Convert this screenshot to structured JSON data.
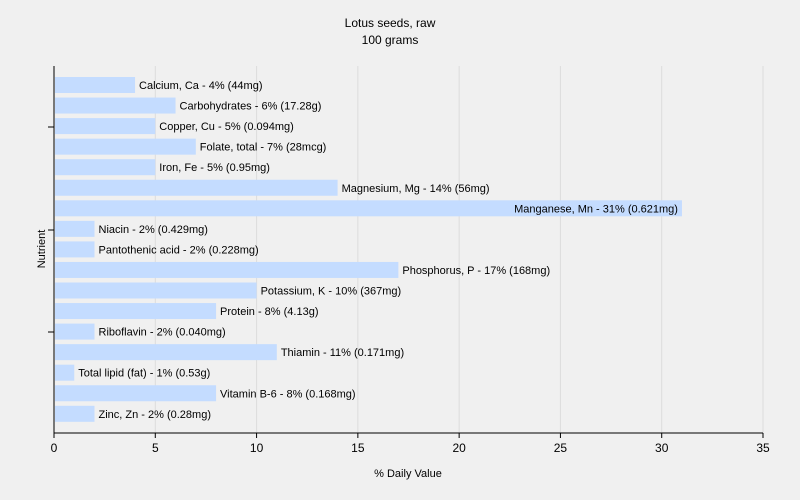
{
  "chart_data": {
    "type": "bar",
    "orientation": "horizontal",
    "title": "Lotus seeds, raw",
    "subtitle": "100 grams",
    "xlabel": "% Daily Value",
    "ylabel": "Nutrient",
    "xlim": [
      0,
      35
    ],
    "xticks": [
      "0",
      "5",
      "10",
      "15",
      "20",
      "25",
      "30",
      "35"
    ],
    "grid": "vertical",
    "bar_color": "#c4dcff",
    "background_color": "#f0f0f0",
    "categories": [
      "Calcium, Ca",
      "Carbohydrates",
      "Copper, Cu",
      "Folate, total",
      "Iron, Fe",
      "Magnesium, Mg",
      "Manganese, Mn",
      "Niacin",
      "Pantothenic acid",
      "Phosphorus, P",
      "Potassium, K",
      "Protein",
      "Riboflavin",
      "Thiamin",
      "Total lipid (fat)",
      "Vitamin B-6",
      "Zinc, Zn"
    ],
    "values": [
      4,
      6,
      5,
      7,
      5,
      14,
      31,
      2,
      2,
      17,
      10,
      8,
      2,
      11,
      1,
      8,
      2
    ],
    "labels": [
      "Calcium, Ca - 4% (44mg)",
      "Carbohydrates - 6% (17.28g)",
      "Copper, Cu - 5% (0.094mg)",
      "Folate, total - 7% (28mcg)",
      "Iron, Fe - 5% (0.95mg)",
      "Magnesium, Mg - 14% (56mg)",
      "Manganese, Mn - 31% (0.621mg)",
      "Niacin - 2% (0.429mg)",
      "Pantothenic acid - 2% (0.228mg)",
      "Phosphorus, P - 17% (168mg)",
      "Potassium, K - 10% (367mg)",
      "Protein - 8% (4.13g)",
      "Riboflavin - 2% (0.040mg)",
      "Thiamin - 11% (0.171mg)",
      "Total lipid (fat) - 1% (0.53g)",
      "Vitamin B-6 - 8% (0.168mg)",
      "Zinc, Zn - 2% (0.28mg)"
    ]
  }
}
